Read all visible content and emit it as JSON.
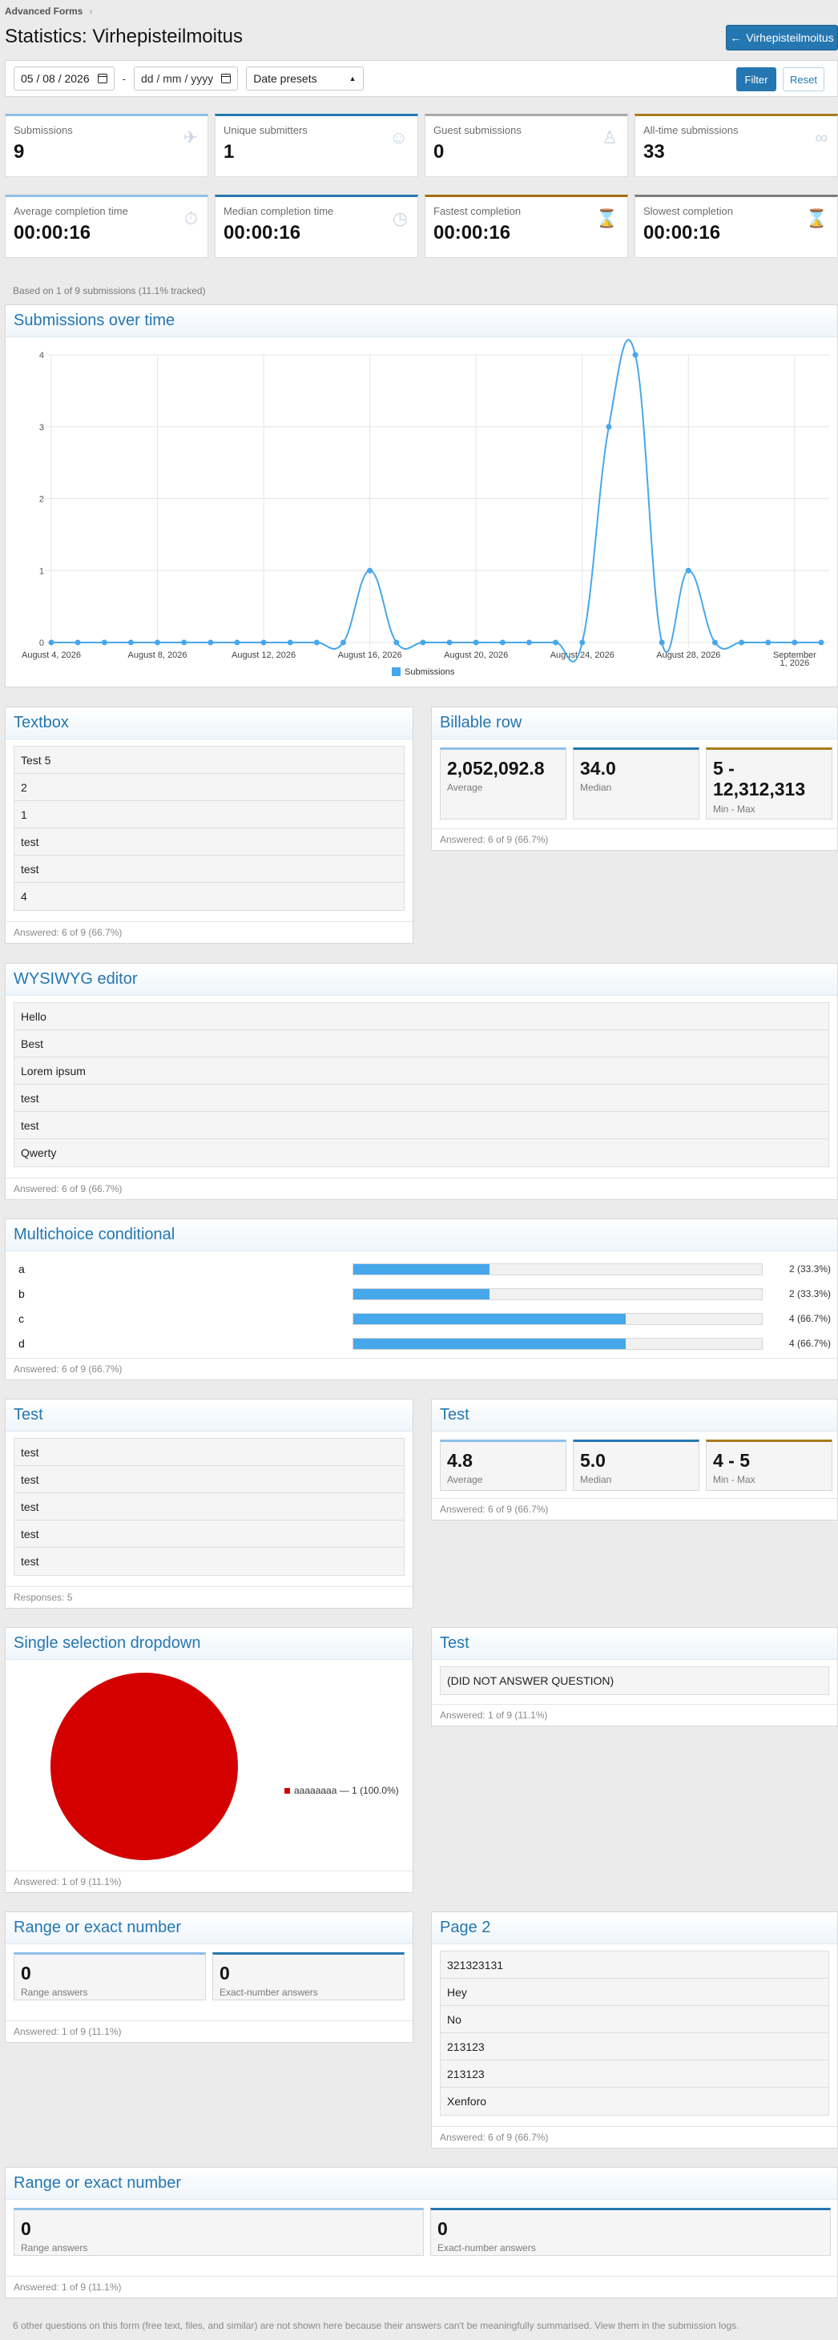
{
  "breadcrumb": {
    "label": "Advanced Forms"
  },
  "page": {
    "title": "Statistics: Virhepisteilmoitus",
    "back_button": "Virhepisteilmoitus"
  },
  "filter": {
    "date_from": "05 / 08 / 2026",
    "date_to": "dd / mm / yyyy",
    "presets": "Date presets",
    "filter_label": "Filter",
    "reset_label": "Reset"
  },
  "stats": [
    {
      "label": "Submissions",
      "value": "9",
      "icon": "paper-plane-icon"
    },
    {
      "label": "Unique submitters",
      "value": "1",
      "icon": "users-icon"
    },
    {
      "label": "Guest submissions",
      "value": "0",
      "icon": "user-secret-icon"
    },
    {
      "label": "All-time submissions",
      "value": "33",
      "icon": "infinity-icon"
    },
    {
      "label": "Average completion time",
      "value": "00:00:16",
      "icon": "stopwatch-icon"
    },
    {
      "label": "Median completion time",
      "value": "00:00:16",
      "icon": "clock-icon"
    },
    {
      "label": "Fastest completion",
      "value": "00:00:16",
      "icon": "hourglass-start-icon"
    },
    {
      "label": "Slowest completion",
      "value": "00:00:16",
      "icon": "hourglass-end-icon"
    }
  ],
  "tracked_note": "Based on 1 of 9 submissions (11.1% tracked)",
  "chart_data": {
    "type": "line",
    "title": "Submissions over time",
    "x": [
      "2026-08-04",
      "2026-08-05",
      "2026-08-06",
      "2026-08-07",
      "2026-08-08",
      "2026-08-09",
      "2026-08-10",
      "2026-08-11",
      "2026-08-12",
      "2026-08-13",
      "2026-08-14",
      "2026-08-15",
      "2026-08-16",
      "2026-08-17",
      "2026-08-18",
      "2026-08-19",
      "2026-08-20",
      "2026-08-21",
      "2026-08-22",
      "2026-08-23",
      "2026-08-24",
      "2026-08-25",
      "2026-08-26",
      "2026-08-27",
      "2026-08-28",
      "2026-08-29",
      "2026-08-30",
      "2026-08-31",
      "2026-09-01",
      "2026-09-02"
    ],
    "series": [
      {
        "name": "Submissions",
        "values": [
          0,
          0,
          0,
          0,
          0,
          0,
          0,
          0,
          0,
          0,
          0,
          0,
          1,
          0,
          0,
          0,
          0,
          0,
          0,
          0,
          0,
          3,
          4,
          0,
          1,
          0,
          0,
          0,
          0,
          0
        ]
      }
    ],
    "x_tick_labels": [
      "August 4, 2026",
      "August 8, 2026",
      "August 12, 2026",
      "August 16, 2026",
      "August 20, 2026",
      "August 24, 2026",
      "August 28, 2026",
      "September 1, 2026"
    ],
    "y_ticks": [
      "0",
      "1",
      "2",
      "3",
      "4"
    ],
    "ylim": [
      0,
      4
    ],
    "legend": "bottom",
    "color": "#47a7eb"
  },
  "textbox": {
    "title": "Textbox",
    "rows": [
      "Test 5",
      "2",
      "1",
      "test",
      "test",
      "4"
    ],
    "footer": "Answered: 6 of 9 (66.7%)"
  },
  "billable": {
    "title": "Billable row",
    "average": "2,052,092.8",
    "average_label": "Average",
    "median": "34.0",
    "median_label": "Median",
    "minmax": "5 - 12,312,313",
    "minmax_label": "Min - Max",
    "footer": "Answered: 6 of 9 (66.7%)"
  },
  "wysiwyg": {
    "title": "WYSIWYG editor",
    "rows": [
      "Hello",
      "Best",
      "Lorem ipsum",
      "test",
      "test",
      "Qwerty"
    ],
    "footer": "Answered: 6 of 9 (66.7%)"
  },
  "multichoice": {
    "title": "Multichoice conditional",
    "options": [
      {
        "label": "a",
        "count": "2 (33.3%)",
        "share": 0.333
      },
      {
        "label": "b",
        "count": "2 (33.3%)",
        "share": 0.333
      },
      {
        "label": "c",
        "count": "4 (66.7%)",
        "share": 0.667
      },
      {
        "label": "d",
        "count": "4 (66.7%)",
        "share": 0.667
      }
    ],
    "footer": "Answered: 6 of 9 (66.7%)"
  },
  "test_text": {
    "title": "Test",
    "rows": [
      "test",
      "test",
      "test",
      "test",
      "test"
    ],
    "footer": "Responses: 5"
  },
  "test_number": {
    "title": "Test",
    "average": "4.8",
    "average_label": "Average",
    "median": "5.0",
    "median_label": "Median",
    "minmax": "4 - 5",
    "minmax_label": "Min - Max",
    "footer": "Answered: 6 of 9 (66.7%)"
  },
  "dropdown": {
    "title": "Single selection dropdown",
    "legend": "aaaaaaaa — 1 (100.0%)",
    "color": "#d40000",
    "footer": "Answered: 1 of 9 (11.1%)"
  },
  "test_noanswer": {
    "title": "Test",
    "value": "(DID NOT ANSWER QUESTION)",
    "footer": "Answered: 1 of 9 (11.1%)"
  },
  "range1": {
    "title": "Range or exact number",
    "range_value": "0",
    "range_label": "Range answers",
    "exact_value": "0",
    "exact_label": "Exact-number answers",
    "footer": "Answered: 1 of 9 (11.1%)"
  },
  "page2": {
    "title": "Page 2",
    "rows": [
      "321323131",
      "Hey",
      "No",
      "213123",
      "213123",
      "Xenforo"
    ],
    "footer": "Answered: 6 of 9 (66.7%)"
  },
  "range2": {
    "title": "Range or exact number",
    "range_value": "0",
    "range_label": "Range answers",
    "exact_value": "0",
    "exact_label": "Exact-number answers",
    "footer": "Answered: 1 of 9 (11.1%)"
  },
  "final_note": "6 other questions on this form (free text, files, and similar) are not shown here because their answers can't be meaningfully summarised. View them in the submission logs."
}
